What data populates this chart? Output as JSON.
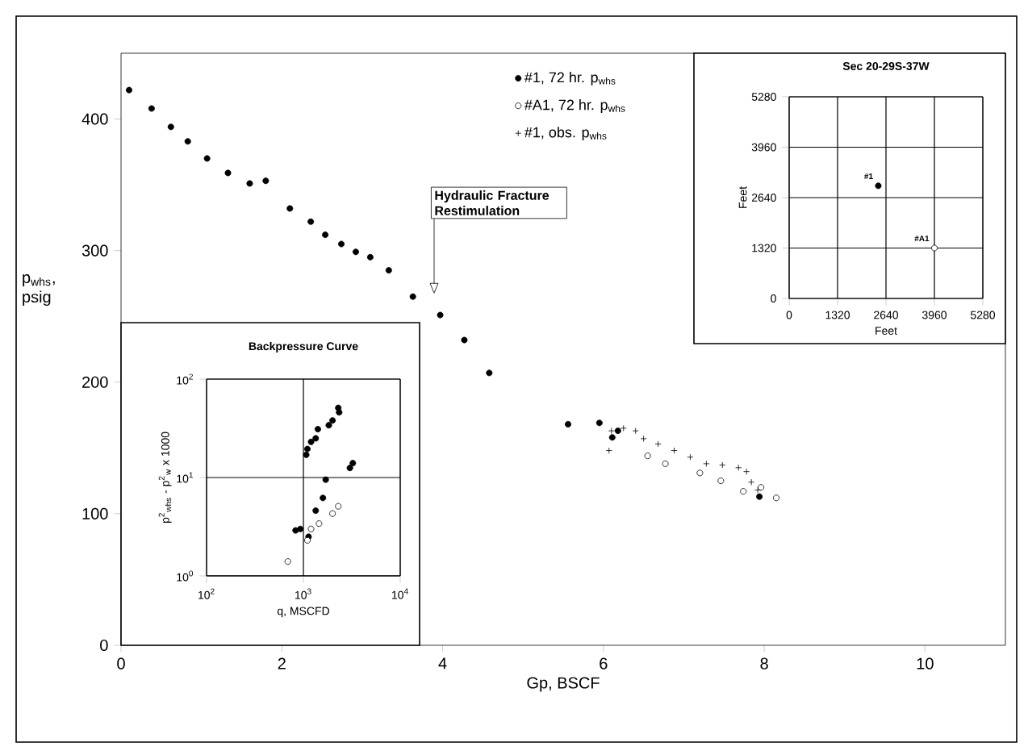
{
  "chart_data": [
    {
      "type": "scatter",
      "xlabel": "Gp, BSCF",
      "ylabel": "p$_{whs}$, psig",
      "xlim": [
        0,
        11
      ],
      "ylim": [
        0,
        450
      ],
      "xticks": [
        0,
        2,
        4,
        6,
        8,
        10
      ],
      "yticks": [
        0,
        100,
        200,
        300,
        400
      ],
      "legend": "top",
      "series": [
        {
          "name": "#1, 72 hr. p$_{whs}$",
          "color": "#000000",
          "marker": "circle",
          "x": [
            0.1,
            0.38,
            0.62,
            0.83,
            1.07,
            1.33,
            1.6,
            1.8,
            2.1,
            2.36,
            2.54,
            2.74,
            2.92,
            3.1,
            3.33,
            3.63,
            3.97,
            4.27,
            4.58,
            5.56,
            5.95,
            6.11,
            6.18,
            7.94
          ],
          "values": [
            422,
            408,
            394,
            383,
            370,
            359,
            351,
            353,
            332,
            322,
            312,
            305,
            299,
            295,
            285,
            265,
            251,
            232,
            207,
            168,
            169,
            158,
            163,
            113
          ]
        },
        {
          "name": "#A1, 72 hr. p$_{whs}$",
          "color": "#ffffff",
          "marker": "circle",
          "x": [
            6.55,
            6.77,
            7.2,
            7.46,
            7.74,
            7.96,
            8.15
          ],
          "values": [
            144,
            138,
            131,
            125,
            117,
            120,
            112
          ]
        },
        {
          "name": "#1, obs. p$_{whs}$",
          "color": "#000000",
          "marker": "cross",
          "x": [
            6.07,
            6.1,
            6.25,
            6.4,
            6.5,
            6.68,
            6.88,
            7.08,
            7.28,
            7.48,
            7.68,
            7.78,
            7.84,
            7.92
          ],
          "values": [
            148,
            163,
            165,
            163,
            157,
            153,
            148,
            143,
            138,
            137,
            135,
            132,
            124,
            118
          ]
        }
      ],
      "annotations": [
        "Hydraulic Fracture Restimulation"
      ]
    },
    {
      "type": "scatter",
      "title": "Backpressure Curve",
      "xlabel": "q, MSCFD",
      "ylabel": "p$^{2}$$_{whs}$ - p$^{2}$$_{w}$ x 1000",
      "log": "xy",
      "grid": true,
      "xlim": [
        100,
        10000
      ],
      "ylim": [
        1,
        100
      ],
      "xticks": [
        {
          "value": 100,
          "label": "10$^{2}$"
        },
        {
          "value": 1000,
          "label": "10$^{3}$"
        },
        {
          "value": 10000,
          "label": "10$^{4}$"
        }
      ],
      "yticks": [
        {
          "value": 1,
          "label": "10$^{0}$"
        },
        {
          "value": 10,
          "label": "10$^{1}$"
        },
        {
          "value": 100,
          "label": "10$^{2}$"
        }
      ],
      "series": [
        {
          "color": "#000000",
          "marker": "circle",
          "x": [
            2290,
            2340,
            2000,
            1830,
            1410,
            1340,
            1200,
            1100,
            1070,
            3240,
            3020,
            1700,
            1590,
            1340,
            830,
            930,
            1130
          ],
          "values": [
            51,
            46,
            38,
            34,
            31,
            25,
            23,
            19.5,
            17,
            14,
            12.5,
            9.5,
            6.2,
            4.6,
            2.9,
            3.0,
            2.5
          ]
        },
        {
          "color": "#ffffff",
          "marker": "circle",
          "x": [
            2290,
            2000,
            1450,
            1200,
            1100,
            690
          ],
          "values": [
            5.1,
            4.3,
            3.4,
            3.0,
            2.3,
            1.4
          ]
        }
      ]
    },
    {
      "type": "scatter",
      "title": "Sec 20-29S-37W",
      "xlabel": "Feet",
      "ylabel": "Feet",
      "grid": true,
      "xlim": [
        0,
        5280
      ],
      "ylim": [
        0,
        5280
      ],
      "xticks": [
        0,
        1320,
        2640,
        3960,
        5280
      ],
      "yticks": [
        0,
        1320,
        2640,
        3960,
        5280
      ],
      "series": [
        {
          "color": "#000000",
          "marker": "circle",
          "x": [
            2430
          ],
          "values": [
            2950
          ]
        },
        {
          "color": "#ffffff",
          "marker": "circle",
          "x": [
            3960
          ],
          "values": [
            1320
          ]
        }
      ],
      "annotations": [
        {
          "text": "#1",
          "x": 2430,
          "y": 2950
        },
        {
          "text": "#A1",
          "x": 3960,
          "y": 1320
        }
      ]
    }
  ]
}
